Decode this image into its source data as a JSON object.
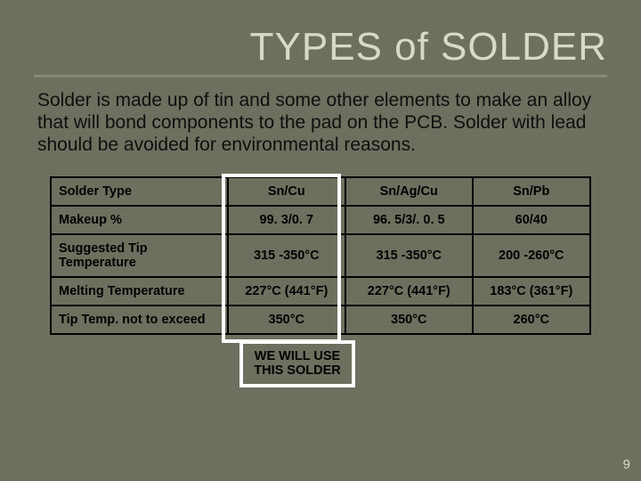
{
  "title": "TYPES of SOLDER",
  "intro": "Solder is made up of tin and some other elements to make an alloy that will bond components to the pad on the PCB.  Solder with lead should be avoided for environmental reasons.",
  "table": {
    "columns": [
      "Solder Type",
      "Sn/Cu",
      "Sn/Ag/Cu",
      "Sn/Pb"
    ],
    "rows": [
      [
        "Makeup %",
        "99. 3/0. 7",
        "96. 5/3/. 0. 5",
        "60/40"
      ],
      [
        "Suggested Tip Temperature",
        "315 -350°C",
        "315 -350°C",
        "200 -260°C"
      ],
      [
        "Melting Temperature",
        "227°C (441°F)",
        "227°C (441°F)",
        "183°C (361°F)"
      ],
      [
        "Tip Temp.  not to exceed",
        "350°C",
        "350°C",
        "260°C"
      ]
    ],
    "border_color": "#000000",
    "callout_border_color": "#ffffff",
    "font_size_pt": 11
  },
  "callout": "WE WILL USE THIS SOLDER",
  "highlighted_column_index": 1,
  "page_number": "9",
  "colors": {
    "background": "#6f6f5f",
    "title": "#d9d9c9",
    "text": "#0f0f0f",
    "rule": "#8a8a78"
  }
}
